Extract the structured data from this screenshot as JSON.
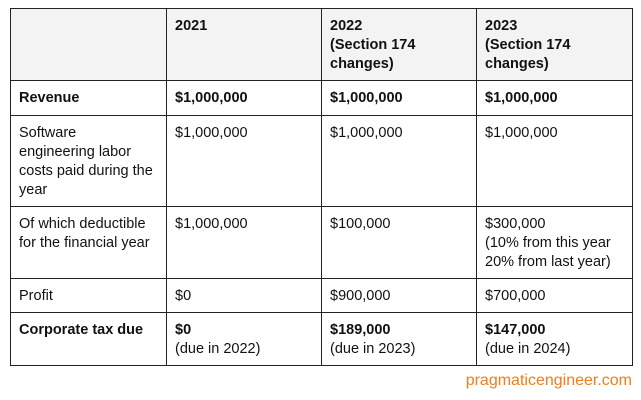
{
  "table": {
    "rows": [
      {
        "bold_lines": 3,
        "cells": [
          [],
          [
            "2021"
          ],
          [
            "2022",
            "(Section 174",
            "changes)"
          ],
          [
            "2023",
            "(Section 174",
            "changes)"
          ]
        ]
      },
      {
        "bold_lines": 1,
        "cells": [
          [
            "Revenue"
          ],
          [
            "$1,000,000"
          ],
          [
            "$1,000,000"
          ],
          [
            "$1,000,000"
          ]
        ]
      },
      {
        "bold_lines": 0,
        "cells": [
          [
            "Software",
            "engineering labor",
            "costs paid during the",
            "year"
          ],
          [
            "$1,000,000"
          ],
          [
            "$1,000,000"
          ],
          [
            "$1,000,000"
          ]
        ]
      },
      {
        "bold_lines": 0,
        "cells": [
          [
            "Of which deductible",
            "for the financial year"
          ],
          [
            "$1,000,000"
          ],
          [
            "$100,000"
          ],
          [
            "$300,000",
            "(10% from this year",
            "20% from last year)"
          ]
        ]
      },
      {
        "bold_lines": 0,
        "cells": [
          [
            "Profit"
          ],
          [
            "$0"
          ],
          [
            "$900,000"
          ],
          [
            "$700,000"
          ]
        ]
      },
      {
        "bold_lines": 1,
        "cells": [
          [
            "Corporate tax due"
          ],
          [
            "$0",
            "(due in 2022)"
          ],
          [
            "$189,000",
            "(due in 2023)"
          ],
          [
            "$147,000",
            "(due in 2024)"
          ]
        ]
      }
    ]
  },
  "footer": {
    "text": "pragmaticengineer.com",
    "color": "#f07d1a"
  }
}
